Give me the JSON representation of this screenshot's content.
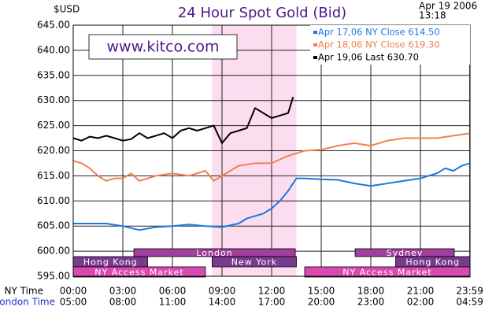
{
  "chart_data": {
    "type": "line",
    "title": "24 Hour Spot Gold (Bid)",
    "unit_label": "$USD",
    "date": "Apr 19 2006",
    "time": "13:18",
    "watermark": "www.kitco.com",
    "x_axis_label": "NY Time",
    "x2_axis_label": "London Time",
    "xlim": [
      0,
      24
    ],
    "xticks": [
      {
        "value": 0,
        "label": "00:00"
      },
      {
        "value": 3,
        "label": "03:00"
      },
      {
        "value": 6,
        "label": "06:00"
      },
      {
        "value": 9,
        "label": "09:00"
      },
      {
        "value": 12,
        "label": "12:00"
      },
      {
        "value": 15,
        "label": "15:00"
      },
      {
        "value": 18,
        "label": "18:00"
      },
      {
        "value": 21,
        "label": "21:00"
      },
      {
        "value": 23.983,
        "label": "23:59"
      }
    ],
    "x2_tick_labels": [
      "05:00",
      "08:00",
      "11:00",
      "14:00",
      "17:00",
      "20:00",
      "23:00",
      "02:00",
      "04:59"
    ],
    "ylim": [
      595,
      645
    ],
    "yticks": [
      {
        "value": 595,
        "label": "595.00"
      },
      {
        "value": 600,
        "label": "600.00"
      },
      {
        "value": 605,
        "label": "605.00"
      },
      {
        "value": 610,
        "label": "610.00"
      },
      {
        "value": 615,
        "label": "615.00"
      },
      {
        "value": 620,
        "label": "620.00"
      },
      {
        "value": 625,
        "label": "625.00"
      },
      {
        "value": 630,
        "label": "630.00"
      },
      {
        "value": 635,
        "label": "635.00"
      },
      {
        "value": 640,
        "label": "640.00"
      },
      {
        "value": 645,
        "label": "645.00"
      }
    ],
    "grid": true,
    "highlight": [
      8.4,
      13.5
    ],
    "series": [
      {
        "name": "Apr 17,06  NY Close 614.50",
        "color": "#1e78e0",
        "x": [
          0,
          1,
          2,
          3,
          4,
          5,
          6,
          7,
          8,
          9,
          10,
          10.5,
          11,
          11.5,
          12,
          12.5,
          13,
          13.5,
          14,
          15,
          16,
          17,
          18,
          19,
          20,
          21,
          22,
          22.5,
          23,
          23.5,
          24
        ],
        "values": [
          605.5,
          605.5,
          605.5,
          605,
          604.2,
          604.8,
          605,
          605.3,
          605,
          604.8,
          605.5,
          606.5,
          607,
          607.5,
          608.5,
          610,
          612,
          614.5,
          614.5,
          614.3,
          614.2,
          613.5,
          613,
          613.5,
          614,
          614.5,
          615.5,
          616.5,
          616,
          617,
          617.5
        ]
      },
      {
        "name": "Apr 18,06  NY Close 619.30",
        "color": "#f08050",
        "x": [
          0,
          0.5,
          1,
          1.5,
          2,
          2.5,
          3,
          3.5,
          4,
          5,
          6,
          7,
          8,
          8.5,
          9,
          10,
          11,
          12,
          13,
          14,
          15,
          16,
          17,
          18,
          19,
          20,
          21,
          22,
          23,
          24
        ],
        "values": [
          618,
          617.5,
          616.5,
          615,
          614,
          614.5,
          614.5,
          615.5,
          614,
          615,
          615.5,
          615,
          616,
          614,
          615,
          617,
          617.5,
          617.5,
          619,
          620,
          620.2,
          621,
          621.5,
          621,
          622,
          622.5,
          622.5,
          622.5,
          623,
          623.5
        ]
      },
      {
        "name": "Apr 19,06  Last 630.70",
        "color": "#000000",
        "x": [
          0,
          0.5,
          1,
          1.5,
          2,
          2.5,
          3,
          3.5,
          4,
          4.5,
          5,
          5.5,
          6,
          6.5,
          7,
          7.5,
          8,
          8.5,
          9,
          9.5,
          10,
          10.5,
          11,
          11.5,
          12,
          12.5,
          13,
          13.3
        ],
        "values": [
          622.5,
          622,
          622.8,
          622.5,
          623,
          622.5,
          622,
          622.3,
          623.5,
          622.5,
          623,
          623.5,
          622.5,
          624,
          624.5,
          624,
          624.5,
          625,
          621.5,
          623.5,
          624,
          624.5,
          628.5,
          627.5,
          626.5,
          627,
          627.5,
          630.7
        ]
      }
    ],
    "markets": [
      {
        "name": "London",
        "color": "#a0409a",
        "spans": [
          [
            3.67,
            13.43
          ]
        ]
      },
      {
        "name": "Sydney",
        "color": "#a0409a",
        "spans": [
          [
            17.05,
            23.05
          ]
        ]
      },
      {
        "name": "Hong Kong",
        "color": "#7a3a8f",
        "spans": [
          [
            0,
            4.5
          ],
          [
            19.5,
            24
          ]
        ]
      },
      {
        "name": "New York",
        "color": "#7a3a8f",
        "spans": [
          [
            8.4,
            13.5
          ]
        ]
      },
      {
        "name": "NY Access Market",
        "color": "#d94ab0",
        "spans": [
          [
            0,
            8
          ],
          [
            14,
            24
          ]
        ]
      }
    ]
  }
}
